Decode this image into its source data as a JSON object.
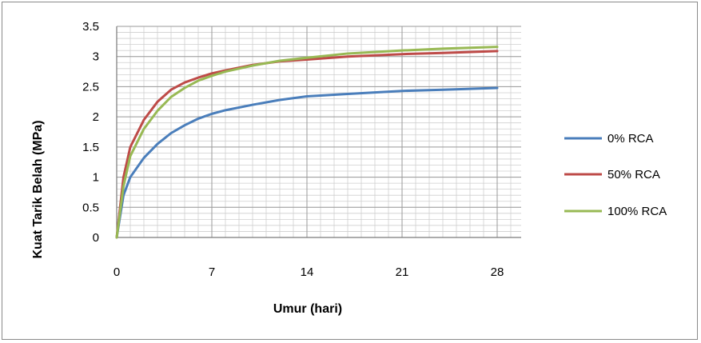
{
  "chart_data": {
    "type": "line",
    "xlabel": "Umur (hari)",
    "ylabel": "Kuat Tarik Belah (MPa)",
    "xlim": [
      0,
      28
    ],
    "ylim": [
      0,
      3.5
    ],
    "xticks": [
      0,
      7,
      14,
      21,
      28
    ],
    "yticks": [
      0,
      0.5,
      1,
      1.5,
      2,
      2.5,
      3,
      3.5
    ],
    "ytick_labels": [
      "0",
      "0.5",
      "1",
      "1.5",
      "2",
      "2.5",
      "3",
      "3.5"
    ],
    "grid": true,
    "legend_position": "right",
    "series": [
      {
        "name": "0% RCA",
        "color": "#4a7ebb",
        "x": [
          0,
          0.5,
          1,
          2,
          3,
          4,
          5,
          6,
          7,
          8,
          10,
          12,
          14,
          17,
          21,
          24,
          28
        ],
        "y": [
          0,
          0.7,
          1.0,
          1.32,
          1.55,
          1.73,
          1.86,
          1.97,
          2.05,
          2.11,
          2.2,
          2.28,
          2.34,
          2.38,
          2.43,
          2.45,
          2.48
        ]
      },
      {
        "name": "50% RCA",
        "color": "#be4b48",
        "x": [
          0,
          0.5,
          1,
          2,
          3,
          4,
          5,
          6,
          7,
          8,
          10,
          12,
          14,
          17,
          21,
          24,
          28
        ],
        "y": [
          0,
          1.0,
          1.5,
          1.95,
          2.25,
          2.45,
          2.57,
          2.65,
          2.72,
          2.77,
          2.86,
          2.92,
          2.95,
          3.0,
          3.04,
          3.06,
          3.09
        ]
      },
      {
        "name": "100% RCA",
        "color": "#98b954",
        "x": [
          0,
          0.5,
          1,
          2,
          3,
          4,
          5,
          6,
          7,
          8,
          10,
          12,
          14,
          17,
          21,
          24,
          28
        ],
        "y": [
          0,
          0.85,
          1.35,
          1.8,
          2.1,
          2.33,
          2.48,
          2.6,
          2.68,
          2.75,
          2.85,
          2.93,
          2.98,
          3.05,
          3.1,
          3.13,
          3.16
        ]
      }
    ]
  }
}
